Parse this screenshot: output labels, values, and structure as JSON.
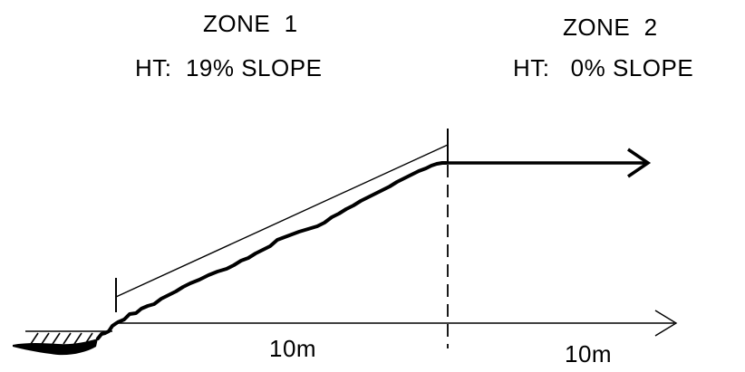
{
  "zone1": {
    "title": "ZONE  1",
    "slope_label": "HT:  19% SLOPE"
  },
  "zone2": {
    "title": "ZONE  2",
    "slope_label": "HT:   0% SLOPE"
  },
  "distances": {
    "zone1": "10m",
    "zone2": "10m"
  },
  "colors": {
    "ink": "#000000",
    "background": "#ffffff"
  }
}
